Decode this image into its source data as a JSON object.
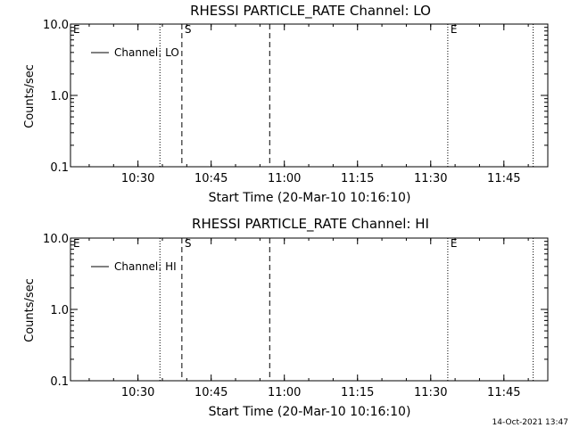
{
  "footer_timestamp": "14-Oct-2021 13:47",
  "chart_data": [
    {
      "type": "line",
      "title": "RHESSI PARTICLE_RATE Channel: LO",
      "xlabel": "Start Time (20-Mar-10 10:16:10)",
      "ylabel": "Counts/sec",
      "y_scale": "log",
      "ylim": [
        0.1,
        10.0
      ],
      "y_ticks": [
        "0.1",
        "1.0",
        "10.0"
      ],
      "xlim": [
        "10:16:10",
        "11:54:00"
      ],
      "x_ticks": [
        "10:30",
        "10:45",
        "11:00",
        "11:15",
        "11:30",
        "11:45"
      ],
      "legend": {
        "label": "Channel: LO",
        "position": "top-left"
      },
      "series": [
        {
          "name": "Channel: LO",
          "values": []
        }
      ],
      "markers": [
        {
          "time": "10:16:10",
          "style": "dotted",
          "label": "E"
        },
        {
          "time": "10:34:30",
          "style": "dotted",
          "label": ""
        },
        {
          "time": "10:39:00",
          "style": "dashed",
          "label": "S"
        },
        {
          "time": "10:57:00",
          "style": "dashed",
          "label": ""
        },
        {
          "time": "11:33:30",
          "style": "dotted",
          "label": "E"
        },
        {
          "time": "11:51:00",
          "style": "dotted",
          "label": ""
        }
      ]
    },
    {
      "type": "line",
      "title": "RHESSI PARTICLE_RATE Channel: HI",
      "xlabel": "Start Time (20-Mar-10 10:16:10)",
      "ylabel": "Counts/sec",
      "y_scale": "log",
      "ylim": [
        0.1,
        10.0
      ],
      "y_ticks": [
        "0.1",
        "1.0",
        "10.0"
      ],
      "xlim": [
        "10:16:10",
        "11:54:00"
      ],
      "x_ticks": [
        "10:30",
        "10:45",
        "11:00",
        "11:15",
        "11:30",
        "11:45"
      ],
      "legend": {
        "label": "Channel: HI",
        "position": "top-left"
      },
      "series": [
        {
          "name": "Channel: HI",
          "values": []
        }
      ],
      "markers": [
        {
          "time": "10:16:10",
          "style": "dotted",
          "label": "E"
        },
        {
          "time": "10:34:30",
          "style": "dotted",
          "label": ""
        },
        {
          "time": "10:39:00",
          "style": "dashed",
          "label": "S"
        },
        {
          "time": "10:57:00",
          "style": "dashed",
          "label": ""
        },
        {
          "time": "11:33:30",
          "style": "dotted",
          "label": "E"
        },
        {
          "time": "11:51:00",
          "style": "dotted",
          "label": ""
        }
      ]
    }
  ]
}
